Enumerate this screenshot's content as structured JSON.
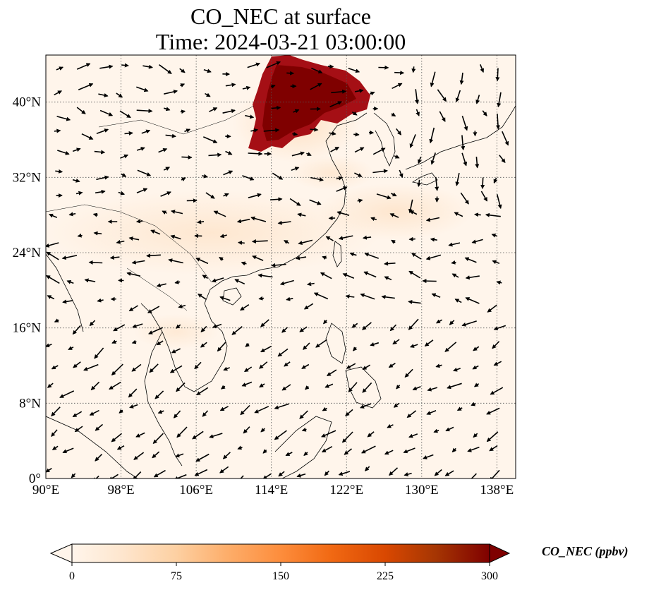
{
  "title": {
    "line1": "CO_NEC at surface",
    "line2": "Time: 2024-03-21 03:00:00"
  },
  "map": {
    "extent": {
      "lon_min": 90,
      "lon_max": 140,
      "lat_min": 0,
      "lat_max": 45
    },
    "lon_ticks": [
      {
        "value": 90,
        "label": "90°E"
      },
      {
        "value": 98,
        "label": "98°E"
      },
      {
        "value": 106,
        "label": "106°E"
      },
      {
        "value": 114,
        "label": "114°E"
      },
      {
        "value": 122,
        "label": "122°E"
      },
      {
        "value": 130,
        "label": "130°E"
      },
      {
        "value": 138,
        "label": "138°E"
      }
    ],
    "lat_ticks": [
      {
        "value": 0,
        "label": "0°"
      },
      {
        "value": 8,
        "label": "8°N"
      },
      {
        "value": 16,
        "label": "16°N"
      },
      {
        "value": 24,
        "label": "24°N"
      },
      {
        "value": 32,
        "label": "32°N"
      },
      {
        "value": 40,
        "label": "40°N"
      }
    ],
    "gridlines": true,
    "colors": {
      "background": "#fff5eb",
      "plume_dark": "#7f0000",
      "plume_mid": "#b30000",
      "coastline": "#000000"
    }
  },
  "colorbar": {
    "title": "CO_NEC (ppbv)",
    "ticks": [
      "0",
      "75",
      "150",
      "225",
      "300"
    ],
    "range": [
      0,
      300
    ],
    "extend": "both",
    "colors": [
      "#fff5eb",
      "#fee6ce",
      "#fdd0a2",
      "#fdae6b",
      "#fd8d3c",
      "#f16913",
      "#d94801",
      "#a63603",
      "#7f2704",
      "#7f0000"
    ]
  }
}
